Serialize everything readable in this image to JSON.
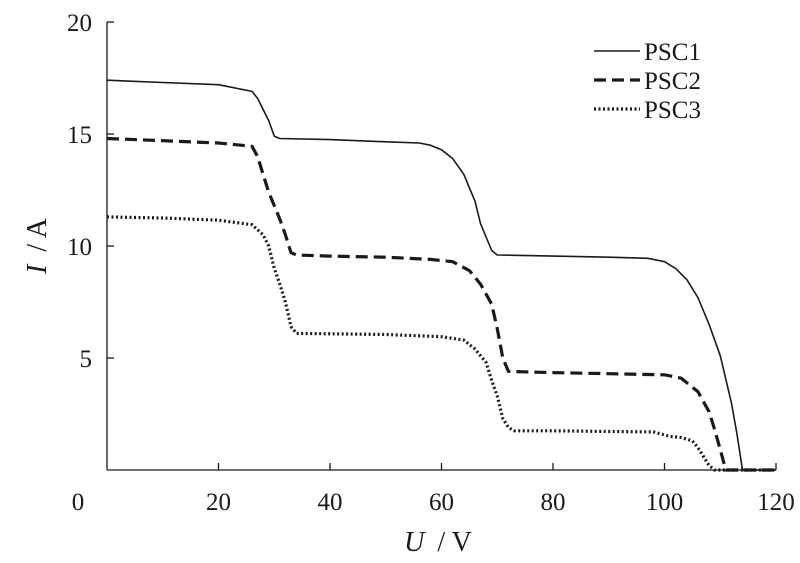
{
  "chart_data": {
    "type": "line",
    "xlabel_var": "U",
    "xlabel_unit": "/ V",
    "ylabel_var": "I",
    "ylabel_unit": "/ A",
    "xlim": [
      0,
      120
    ],
    "ylim": [
      0,
      20
    ],
    "x_ticks": [
      0,
      20,
      40,
      60,
      80,
      100,
      120
    ],
    "x_tick_labels": [
      "0",
      "20",
      "40",
      "60",
      "80",
      "100",
      "120"
    ],
    "y_ticks": [
      5,
      10,
      15,
      20
    ],
    "y_tick_labels": [
      "5",
      "10",
      "15",
      "20"
    ],
    "grid": false,
    "legend_position": "top-right",
    "series": [
      {
        "name": "PSC1",
        "style": "solid",
        "points": [
          [
            0,
            17.4
          ],
          [
            10,
            17.3
          ],
          [
            20,
            17.2
          ],
          [
            26,
            16.9
          ],
          [
            27,
            16.6
          ],
          [
            28,
            16.1
          ],
          [
            29,
            15.6
          ],
          [
            30,
            14.9
          ],
          [
            31,
            14.8
          ],
          [
            40,
            14.75
          ],
          [
            50,
            14.65
          ],
          [
            56,
            14.6
          ],
          [
            58,
            14.5
          ],
          [
            60,
            14.3
          ],
          [
            62,
            13.9
          ],
          [
            64,
            13.2
          ],
          [
            65,
            12.6
          ],
          [
            66,
            12.0
          ],
          [
            67,
            11.0
          ],
          [
            68,
            10.4
          ],
          [
            69,
            9.8
          ],
          [
            70,
            9.6
          ],
          [
            80,
            9.55
          ],
          [
            90,
            9.5
          ],
          [
            97,
            9.45
          ],
          [
            100,
            9.3
          ],
          [
            102,
            9.0
          ],
          [
            104,
            8.5
          ],
          [
            106,
            7.7
          ],
          [
            108,
            6.5
          ],
          [
            110,
            5.1
          ],
          [
            112,
            3.0
          ],
          [
            113,
            1.6
          ],
          [
            114,
            0
          ],
          [
            120,
            0
          ]
        ]
      },
      {
        "name": "PSC2",
        "style": "dashed",
        "points": [
          [
            0,
            14.8
          ],
          [
            10,
            14.7
          ],
          [
            20,
            14.6
          ],
          [
            26,
            14.45
          ],
          [
            27,
            14.0
          ],
          [
            28,
            13.2
          ],
          [
            29,
            12.4
          ],
          [
            30,
            11.8
          ],
          [
            31,
            11.2
          ],
          [
            32,
            10.5
          ],
          [
            33,
            9.7
          ],
          [
            34,
            9.6
          ],
          [
            40,
            9.55
          ],
          [
            50,
            9.5
          ],
          [
            58,
            9.4
          ],
          [
            62,
            9.3
          ],
          [
            65,
            8.9
          ],
          [
            67,
            8.3
          ],
          [
            69,
            7.4
          ],
          [
            70,
            6.3
          ],
          [
            71,
            5.0
          ],
          [
            72,
            4.4
          ],
          [
            80,
            4.35
          ],
          [
            90,
            4.3
          ],
          [
            100,
            4.25
          ],
          [
            103,
            4.1
          ],
          [
            106,
            3.5
          ],
          [
            108,
            2.6
          ],
          [
            109,
            1.8
          ],
          [
            110,
            0.9
          ],
          [
            111,
            0
          ],
          [
            120,
            0
          ]
        ]
      },
      {
        "name": "PSC3",
        "style": "dotted",
        "points": [
          [
            0,
            11.3
          ],
          [
            10,
            11.25
          ],
          [
            20,
            11.15
          ],
          [
            26,
            10.95
          ],
          [
            28,
            10.5
          ],
          [
            29,
            10.0
          ],
          [
            30,
            9.0
          ],
          [
            31,
            8.3
          ],
          [
            32,
            7.5
          ],
          [
            33,
            6.4
          ],
          [
            34,
            6.1
          ],
          [
            40,
            6.08
          ],
          [
            50,
            6.05
          ],
          [
            60,
            5.95
          ],
          [
            64,
            5.8
          ],
          [
            66,
            5.4
          ],
          [
            68,
            4.8
          ],
          [
            69,
            4.0
          ],
          [
            70,
            3.3
          ],
          [
            71,
            2.3
          ],
          [
            72,
            1.9
          ],
          [
            73,
            1.75
          ],
          [
            80,
            1.75
          ],
          [
            90,
            1.72
          ],
          [
            98,
            1.7
          ],
          [
            101,
            1.5
          ],
          [
            103,
            1.45
          ],
          [
            105,
            1.3
          ],
          [
            106,
            1.0
          ],
          [
            107,
            0.6
          ],
          [
            108,
            0.2
          ],
          [
            109,
            0
          ],
          [
            120,
            0
          ]
        ]
      }
    ]
  }
}
